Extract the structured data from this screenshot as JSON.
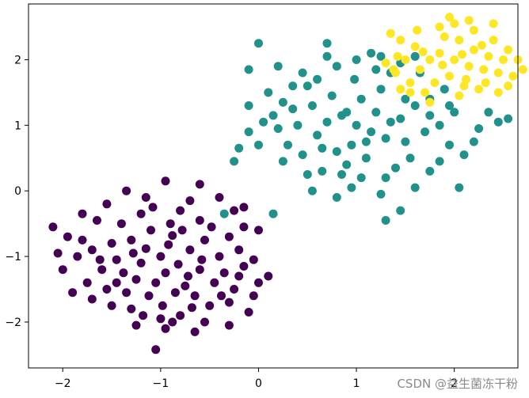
{
  "chart_data": {
    "type": "scatter",
    "title": "",
    "xlabel": "",
    "ylabel": "",
    "xlim": [
      -2.35,
      2.65
    ],
    "ylim": [
      -2.7,
      2.85
    ],
    "xticks": [
      -2,
      -1,
      0,
      1,
      2
    ],
    "yticks": [
      -2,
      -1,
      0,
      1,
      2
    ],
    "xtick_labels": [
      "−2",
      "−1",
      "0",
      "1",
      "2"
    ],
    "ytick_labels": [
      "−2",
      "−1",
      "0",
      "1",
      "2"
    ],
    "grid": false,
    "legend": "none",
    "series": [
      {
        "color": "#440154",
        "center": [
          -1,
          -1
        ],
        "points": [
          [
            -1.0,
            -1.0
          ],
          [
            -0.82,
            -1.12
          ],
          [
            -1.15,
            -0.88
          ],
          [
            -0.95,
            -1.25
          ],
          [
            -1.2,
            -1.1
          ],
          [
            -0.7,
            -0.9
          ],
          [
            -1.3,
            -0.75
          ],
          [
            -0.88,
            -0.68
          ],
          [
            -1.05,
            -1.4
          ],
          [
            -0.6,
            -1.2
          ],
          [
            -1.45,
            -1.05
          ],
          [
            -0.75,
            -1.45
          ],
          [
            -1.25,
            -1.35
          ],
          [
            -0.9,
            -0.5
          ],
          [
            -1.1,
            -0.6
          ],
          [
            -0.55,
            -0.75
          ],
          [
            -1.5,
            -0.8
          ],
          [
            -0.65,
            -1.6
          ],
          [
            -1.35,
            -1.55
          ],
          [
            -0.98,
            -1.75
          ],
          [
            -0.4,
            -1.0
          ],
          [
            -1.6,
            -1.2
          ],
          [
            -0.8,
            -0.3
          ],
          [
            -1.2,
            -0.35
          ],
          [
            -0.45,
            -1.4
          ],
          [
            -1.7,
            -0.9
          ],
          [
            -0.3,
            -0.7
          ],
          [
            -1.55,
            -1.5
          ],
          [
            -0.6,
            -0.45
          ],
          [
            -1.4,
            -0.5
          ],
          [
            -1.0,
            -1.95
          ],
          [
            -0.35,
            -1.25
          ],
          [
            -1.75,
            -1.4
          ],
          [
            -0.5,
            -1.75
          ],
          [
            -1.3,
            -1.8
          ],
          [
            -0.2,
            -0.9
          ],
          [
            -1.85,
            -1.0
          ],
          [
            -0.7,
            -0.15
          ],
          [
            -1.15,
            -0.1
          ],
          [
            -0.25,
            -1.5
          ],
          [
            -1.95,
            -0.7
          ],
          [
            -0.15,
            -1.15
          ],
          [
            -2.1,
            -0.55
          ],
          [
            -2.0,
            -1.2
          ],
          [
            -1.9,
            -1.55
          ],
          [
            -1.65,
            -0.45
          ],
          [
            -0.05,
            -1.05
          ],
          [
            0.1,
            -1.3
          ],
          [
            -0.1,
            -1.85
          ],
          [
            -0.55,
            -2.0
          ],
          [
            -0.95,
            -2.1
          ],
          [
            -1.25,
            -2.05
          ],
          [
            -0.8,
            -1.9
          ],
          [
            -0.65,
            -2.15
          ],
          [
            -1.05,
            -2.42
          ],
          [
            -0.4,
            -0.1
          ],
          [
            -0.6,
            0.1
          ],
          [
            -0.95,
            0.15
          ],
          [
            -1.35,
            0.0
          ],
          [
            -0.25,
            -0.3
          ],
          [
            -0.15,
            -0.55
          ],
          [
            0.0,
            -0.6
          ],
          [
            -1.55,
            -0.2
          ],
          [
            -1.8,
            -0.35
          ],
          [
            -2.05,
            -0.95
          ],
          [
            -1.5,
            -1.75
          ],
          [
            -1.7,
            -1.65
          ],
          [
            -0.3,
            -1.7
          ],
          [
            -0.05,
            -1.6
          ],
          [
            0.0,
            -1.4
          ],
          [
            -0.85,
            -1.55
          ],
          [
            -1.12,
            -1.6
          ],
          [
            -0.72,
            -1.3
          ],
          [
            -0.58,
            -1.05
          ],
          [
            -1.38,
            -1.25
          ],
          [
            -1.28,
            -0.95
          ],
          [
            -0.92,
            -0.82
          ],
          [
            -0.78,
            -0.6
          ],
          [
            -1.08,
            -0.25
          ],
          [
            -0.48,
            -0.55
          ],
          [
            -0.38,
            -1.6
          ],
          [
            -0.2,
            -1.3
          ],
          [
            -1.62,
            -1.05
          ],
          [
            -1.8,
            -0.75
          ],
          [
            -1.45,
            -1.4
          ],
          [
            -0.68,
            -1.78
          ],
          [
            -1.18,
            -1.9
          ],
          [
            -0.88,
            -2.0
          ],
          [
            -0.3,
            -2.05
          ],
          [
            -0.15,
            -0.25
          ]
        ]
      },
      {
        "color": "#21918c",
        "center": [
          1,
          1
        ],
        "points": [
          [
            1.0,
            1.0
          ],
          [
            0.85,
            1.15
          ],
          [
            1.15,
            0.9
          ],
          [
            0.95,
            0.7
          ],
          [
            1.2,
            1.2
          ],
          [
            0.7,
            1.05
          ],
          [
            1.3,
            0.8
          ],
          [
            0.8,
            0.6
          ],
          [
            1.05,
            1.4
          ],
          [
            0.6,
            0.85
          ],
          [
            1.45,
            1.1
          ],
          [
            0.75,
            1.45
          ],
          [
            1.25,
            1.55
          ],
          [
            0.9,
            0.4
          ],
          [
            1.1,
            0.5
          ],
          [
            0.55,
            1.3
          ],
          [
            1.5,
            0.75
          ],
          [
            0.65,
            0.3
          ],
          [
            1.35,
            1.8
          ],
          [
            0.98,
            1.7
          ],
          [
            0.4,
            1.0
          ],
          [
            1.6,
            1.3
          ],
          [
            0.8,
            1.9
          ],
          [
            1.2,
            1.85
          ],
          [
            0.45,
            0.55
          ],
          [
            1.7,
            0.9
          ],
          [
            0.3,
            0.7
          ],
          [
            1.55,
            0.5
          ],
          [
            0.6,
            1.7
          ],
          [
            1.4,
            0.35
          ],
          [
            1.0,
            2.0
          ],
          [
            0.35,
            1.25
          ],
          [
            1.75,
            1.4
          ],
          [
            0.5,
            0.25
          ],
          [
            1.3,
            0.2
          ],
          [
            0.2,
            0.95
          ],
          [
            1.85,
            1.0
          ],
          [
            0.7,
            2.05
          ],
          [
            1.15,
            2.1
          ],
          [
            0.25,
            0.45
          ],
          [
            1.95,
            0.7
          ],
          [
            0.15,
            1.15
          ],
          [
            2.1,
            0.55
          ],
          [
            2.0,
            1.2
          ],
          [
            1.9,
            1.55
          ],
          [
            1.65,
            1.8
          ],
          [
            0.05,
            1.05
          ],
          [
            -0.1,
            0.9
          ],
          [
            0.1,
            1.5
          ],
          [
            0.55,
            0.0
          ],
          [
            0.95,
            0.05
          ],
          [
            1.25,
            -0.05
          ],
          [
            0.8,
            -0.1
          ],
          [
            1.45,
            -0.3
          ],
          [
            1.3,
            -0.45
          ],
          [
            -0.25,
            0.45
          ],
          [
            -0.1,
            1.3
          ],
          [
            0.2,
            1.9
          ],
          [
            -0.1,
            1.85
          ],
          [
            0.5,
            1.6
          ],
          [
            0.0,
            2.25
          ],
          [
            0.45,
            1.8
          ],
          [
            0.7,
            2.25
          ],
          [
            1.45,
            1.95
          ],
          [
            1.6,
            2.05
          ],
          [
            2.25,
            0.95
          ],
          [
            2.45,
            1.05
          ],
          [
            2.55,
            1.1
          ],
          [
            2.35,
            1.2
          ],
          [
            1.95,
            1.3
          ],
          [
            2.05,
            0.05
          ],
          [
            1.75,
            0.3
          ],
          [
            1.6,
            0.05
          ],
          [
            -0.2,
            0.65
          ],
          [
            0.0,
            0.7
          ],
          [
            0.25,
            1.35
          ],
          [
            1.85,
            0.45
          ],
          [
            2.2,
            0.75
          ],
          [
            1.05,
            0.2
          ],
          [
            0.85,
            0.25
          ],
          [
            -0.35,
            -0.35
          ],
          [
            0.15,
            -0.35
          ],
          [
            1.35,
            1.05
          ],
          [
            1.5,
            1.4
          ],
          [
            0.65,
            0.65
          ],
          [
            1.1,
            0.75
          ],
          [
            1.75,
            1.15
          ],
          [
            0.35,
            1.6
          ],
          [
            1.25,
            2.05
          ],
          [
            0.9,
            1.2
          ]
        ]
      },
      {
        "color": "#fde725",
        "center": [
          2,
          2
        ],
        "points": [
          [
            2.0,
            2.0
          ],
          [
            1.85,
            2.1
          ],
          [
            2.15,
            1.9
          ],
          [
            1.95,
            1.75
          ],
          [
            2.2,
            2.15
          ],
          [
            1.75,
            2.0
          ],
          [
            2.3,
            1.85
          ],
          [
            1.8,
            1.65
          ],
          [
            2.05,
            2.3
          ],
          [
            1.65,
            1.85
          ],
          [
            2.35,
            2.05
          ],
          [
            1.9,
            2.35
          ],
          [
            2.2,
            2.45
          ],
          [
            2.1,
            1.6
          ],
          [
            1.6,
            2.2
          ],
          [
            2.45,
            1.8
          ],
          [
            1.7,
            1.5
          ],
          [
            2.4,
            2.3
          ],
          [
            2.0,
            2.55
          ],
          [
            1.5,
            2.0
          ],
          [
            2.5,
            2.0
          ],
          [
            1.85,
            2.5
          ],
          [
            2.25,
            1.55
          ],
          [
            1.55,
            1.65
          ],
          [
            2.55,
            2.15
          ],
          [
            1.45,
            2.3
          ],
          [
            2.6,
            1.75
          ],
          [
            1.4,
            1.8
          ],
          [
            2.15,
            2.6
          ],
          [
            1.62,
            2.45
          ],
          [
            2.32,
            1.65
          ],
          [
            1.75,
            1.35
          ],
          [
            2.05,
            1.45
          ],
          [
            2.45,
            1.5
          ],
          [
            1.42,
            2.05
          ],
          [
            2.65,
            2.0
          ],
          [
            1.3,
            1.95
          ],
          [
            2.7,
            1.85
          ],
          [
            1.95,
            2.65
          ],
          [
            1.35,
            2.4
          ],
          [
            2.4,
            2.55
          ],
          [
            1.55,
            1.5
          ],
          [
            2.55,
            1.6
          ],
          [
            1.45,
            1.55
          ],
          [
            1.38,
            1.85
          ],
          [
            2.12,
            1.7
          ],
          [
            1.88,
            1.92
          ],
          [
            2.28,
            2.22
          ],
          [
            1.68,
            2.12
          ],
          [
            2.08,
            2.08
          ]
        ]
      }
    ]
  },
  "watermark": "CSDN @益生菌冻干粉"
}
